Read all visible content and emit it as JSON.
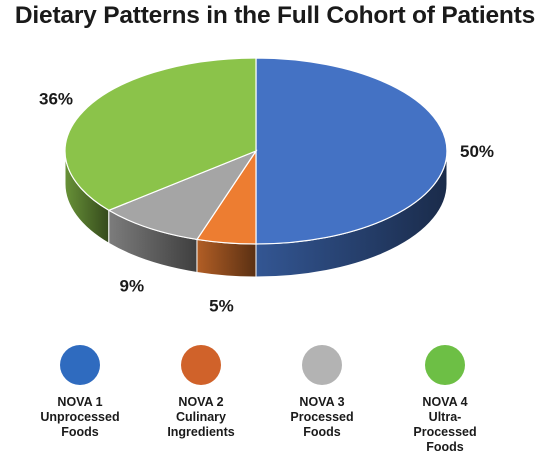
{
  "chart_data": {
    "type": "pie",
    "title": "Dietary Patterns in the Full Cohort of Patients",
    "slices": [
      {
        "label": "NOVA 1 Unprocessed Foods",
        "value": 50,
        "display": "50%",
        "color": "#4472c4"
      },
      {
        "label": "NOVA 2 Culinary Ingredients",
        "value": 5,
        "display": "5%",
        "color": "#ed7d31"
      },
      {
        "label": "NOVA 3 Processed Foods",
        "value": 9,
        "display": "9%",
        "color": "#a5a5a5"
      },
      {
        "label": "NOVA 4 Ultra-Processed Foods",
        "value": 36,
        "display": "36%",
        "color": "#8bc34a"
      }
    ],
    "legend": {
      "position": "bottom",
      "items": [
        {
          "lines": [
            "NOVA 1",
            "Unprocessed",
            "Foods"
          ],
          "color": "#2f6bbf"
        },
        {
          "lines": [
            "NOVA 2",
            "Culinary",
            "Ingredients"
          ],
          "color": "#d0622a"
        },
        {
          "lines": [
            "NOVA 3",
            "Processed",
            "Foods"
          ],
          "color": "#b3b3b3"
        },
        {
          "lines": [
            "NOVA 4",
            "Ultra-",
            "Processed",
            "Foods"
          ],
          "color": "#6dbf45"
        }
      ]
    },
    "style": "3d"
  }
}
